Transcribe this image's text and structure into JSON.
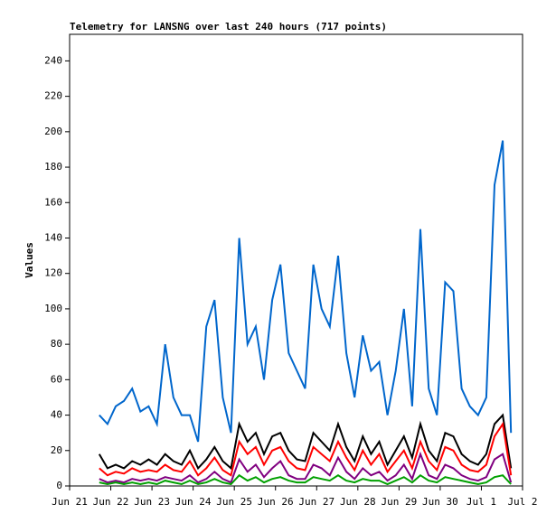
{
  "chart_data": {
    "type": "line",
    "title": "Telemetry for LANSNG over last 240 hours (717 points)",
    "y_label": "Values",
    "x": [
      0.72,
      0.92,
      1.12,
      1.32,
      1.52,
      1.72,
      1.92,
      2.12,
      2.32,
      2.52,
      2.72,
      2.92,
      3.12,
      3.32,
      3.52,
      3.72,
      3.92,
      4.12,
      4.32,
      4.52,
      4.72,
      4.92,
      5.12,
      5.32,
      5.52,
      5.72,
      5.92,
      6.12,
      6.32,
      6.52,
      6.72,
      6.92,
      7.12,
      7.32,
      7.52,
      7.72,
      7.92,
      8.12,
      8.32,
      8.52,
      8.72,
      8.92,
      9.12,
      9.32,
      9.52,
      9.72,
      9.92,
      10.12,
      10.32,
      10.52,
      10.72
    ],
    "series": [
      {
        "color": "#0066cc",
        "values": [
          40,
          35,
          45,
          48,
          55,
          42,
          45,
          35,
          80,
          50,
          40,
          40,
          25,
          90,
          105,
          50,
          30,
          140,
          80,
          90,
          60,
          105,
          125,
          75,
          65,
          55,
          125,
          100,
          90,
          130,
          75,
          50,
          85,
          65,
          70,
          40,
          65,
          100,
          45,
          145,
          55,
          40,
          115,
          110,
          55,
          45,
          40,
          50,
          170,
          195,
          30
        ]
      },
      {
        "color": "#000000",
        "values": [
          18,
          10,
          12,
          10,
          14,
          12,
          15,
          12,
          18,
          14,
          12,
          20,
          10,
          15,
          22,
          14,
          10,
          35,
          25,
          30,
          18,
          28,
          30,
          20,
          15,
          14,
          30,
          25,
          20,
          35,
          22,
          14,
          28,
          18,
          25,
          12,
          20,
          28,
          16,
          35,
          20,
          14,
          30,
          28,
          18,
          14,
          12,
          18,
          35,
          40,
          10
        ]
      },
      {
        "color": "#ff0000",
        "values": [
          10,
          6,
          8,
          7,
          10,
          8,
          9,
          8,
          12,
          9,
          8,
          14,
          6,
          10,
          16,
          9,
          6,
          25,
          18,
          22,
          12,
          20,
          22,
          14,
          10,
          9,
          22,
          18,
          14,
          25,
          16,
          9,
          20,
          12,
          18,
          8,
          14,
          20,
          10,
          25,
          14,
          9,
          22,
          20,
          12,
          9,
          8,
          12,
          28,
          35,
          6
        ]
      },
      {
        "color": "#800080",
        "values": [
          4,
          2,
          3,
          2,
          4,
          3,
          4,
          3,
          5,
          4,
          3,
          6,
          2,
          4,
          8,
          4,
          2,
          15,
          8,
          12,
          5,
          10,
          14,
          6,
          4,
          4,
          12,
          10,
          6,
          16,
          8,
          4,
          10,
          6,
          8,
          3,
          6,
          12,
          4,
          18,
          6,
          4,
          12,
          10,
          6,
          4,
          3,
          5,
          15,
          18,
          2
        ]
      },
      {
        "color": "#00a000",
        "values": [
          2,
          1,
          2,
          1,
          2,
          1,
          2,
          1,
          3,
          2,
          1,
          3,
          1,
          2,
          4,
          2,
          1,
          6,
          3,
          5,
          2,
          4,
          5,
          3,
          2,
          2,
          5,
          4,
          3,
          6,
          3,
          2,
          4,
          3,
          3,
          1,
          3,
          5,
          2,
          6,
          3,
          2,
          5,
          4,
          3,
          2,
          1,
          2,
          5,
          6,
          1
        ]
      }
    ],
    "xlim": [
      0,
      11
    ],
    "xticks": [
      {
        "value": 0,
        "label": "Jun 21"
      },
      {
        "value": 1,
        "label": "Jun 22"
      },
      {
        "value": 2,
        "label": "Jun 23"
      },
      {
        "value": 3,
        "label": "Jun 24"
      },
      {
        "value": 4,
        "label": "Jun 25"
      },
      {
        "value": 5,
        "label": "Jun 26"
      },
      {
        "value": 6,
        "label": "Jun 27"
      },
      {
        "value": 7,
        "label": "Jun 28"
      },
      {
        "value": 8,
        "label": "Jun 29"
      },
      {
        "value": 9,
        "label": "Jun 30"
      },
      {
        "value": 10,
        "label": "Jul 1"
      },
      {
        "value": 11,
        "label": "Jul 2"
      }
    ],
    "ylim": [
      0,
      255
    ],
    "yticks": [
      0,
      20,
      40,
      60,
      80,
      100,
      120,
      140,
      160,
      180,
      200,
      220,
      240
    ]
  }
}
